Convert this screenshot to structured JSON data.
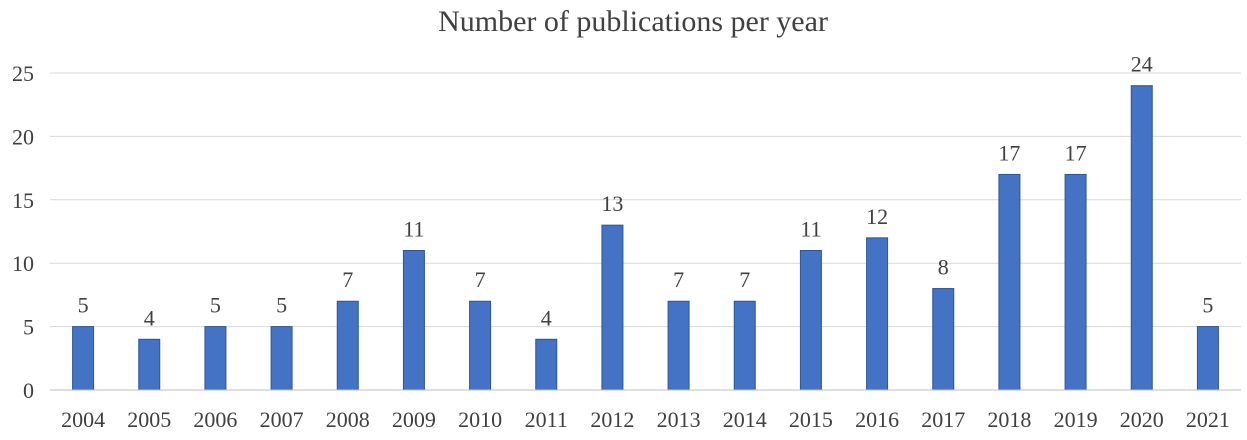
{
  "chart_data": {
    "type": "bar",
    "title": "Number of publications per year",
    "xlabel": "",
    "ylabel": "",
    "categories": [
      "2004",
      "2005",
      "2006",
      "2007",
      "2008",
      "2009",
      "2010",
      "2011",
      "2012",
      "2013",
      "2014",
      "2015",
      "2016",
      "2017",
      "2018",
      "2019",
      "2020",
      "2021"
    ],
    "values": [
      5,
      4,
      5,
      5,
      7,
      11,
      7,
      4,
      13,
      7,
      7,
      11,
      12,
      8,
      17,
      17,
      24,
      5
    ],
    "ylim": [
      0,
      25
    ],
    "yticks": [
      0,
      5,
      10,
      15,
      20,
      25
    ],
    "grid": true,
    "legend": "none",
    "data_labels": true,
    "colors": {
      "bar": "#4472c4",
      "bar_edge": "#2f5597"
    }
  }
}
